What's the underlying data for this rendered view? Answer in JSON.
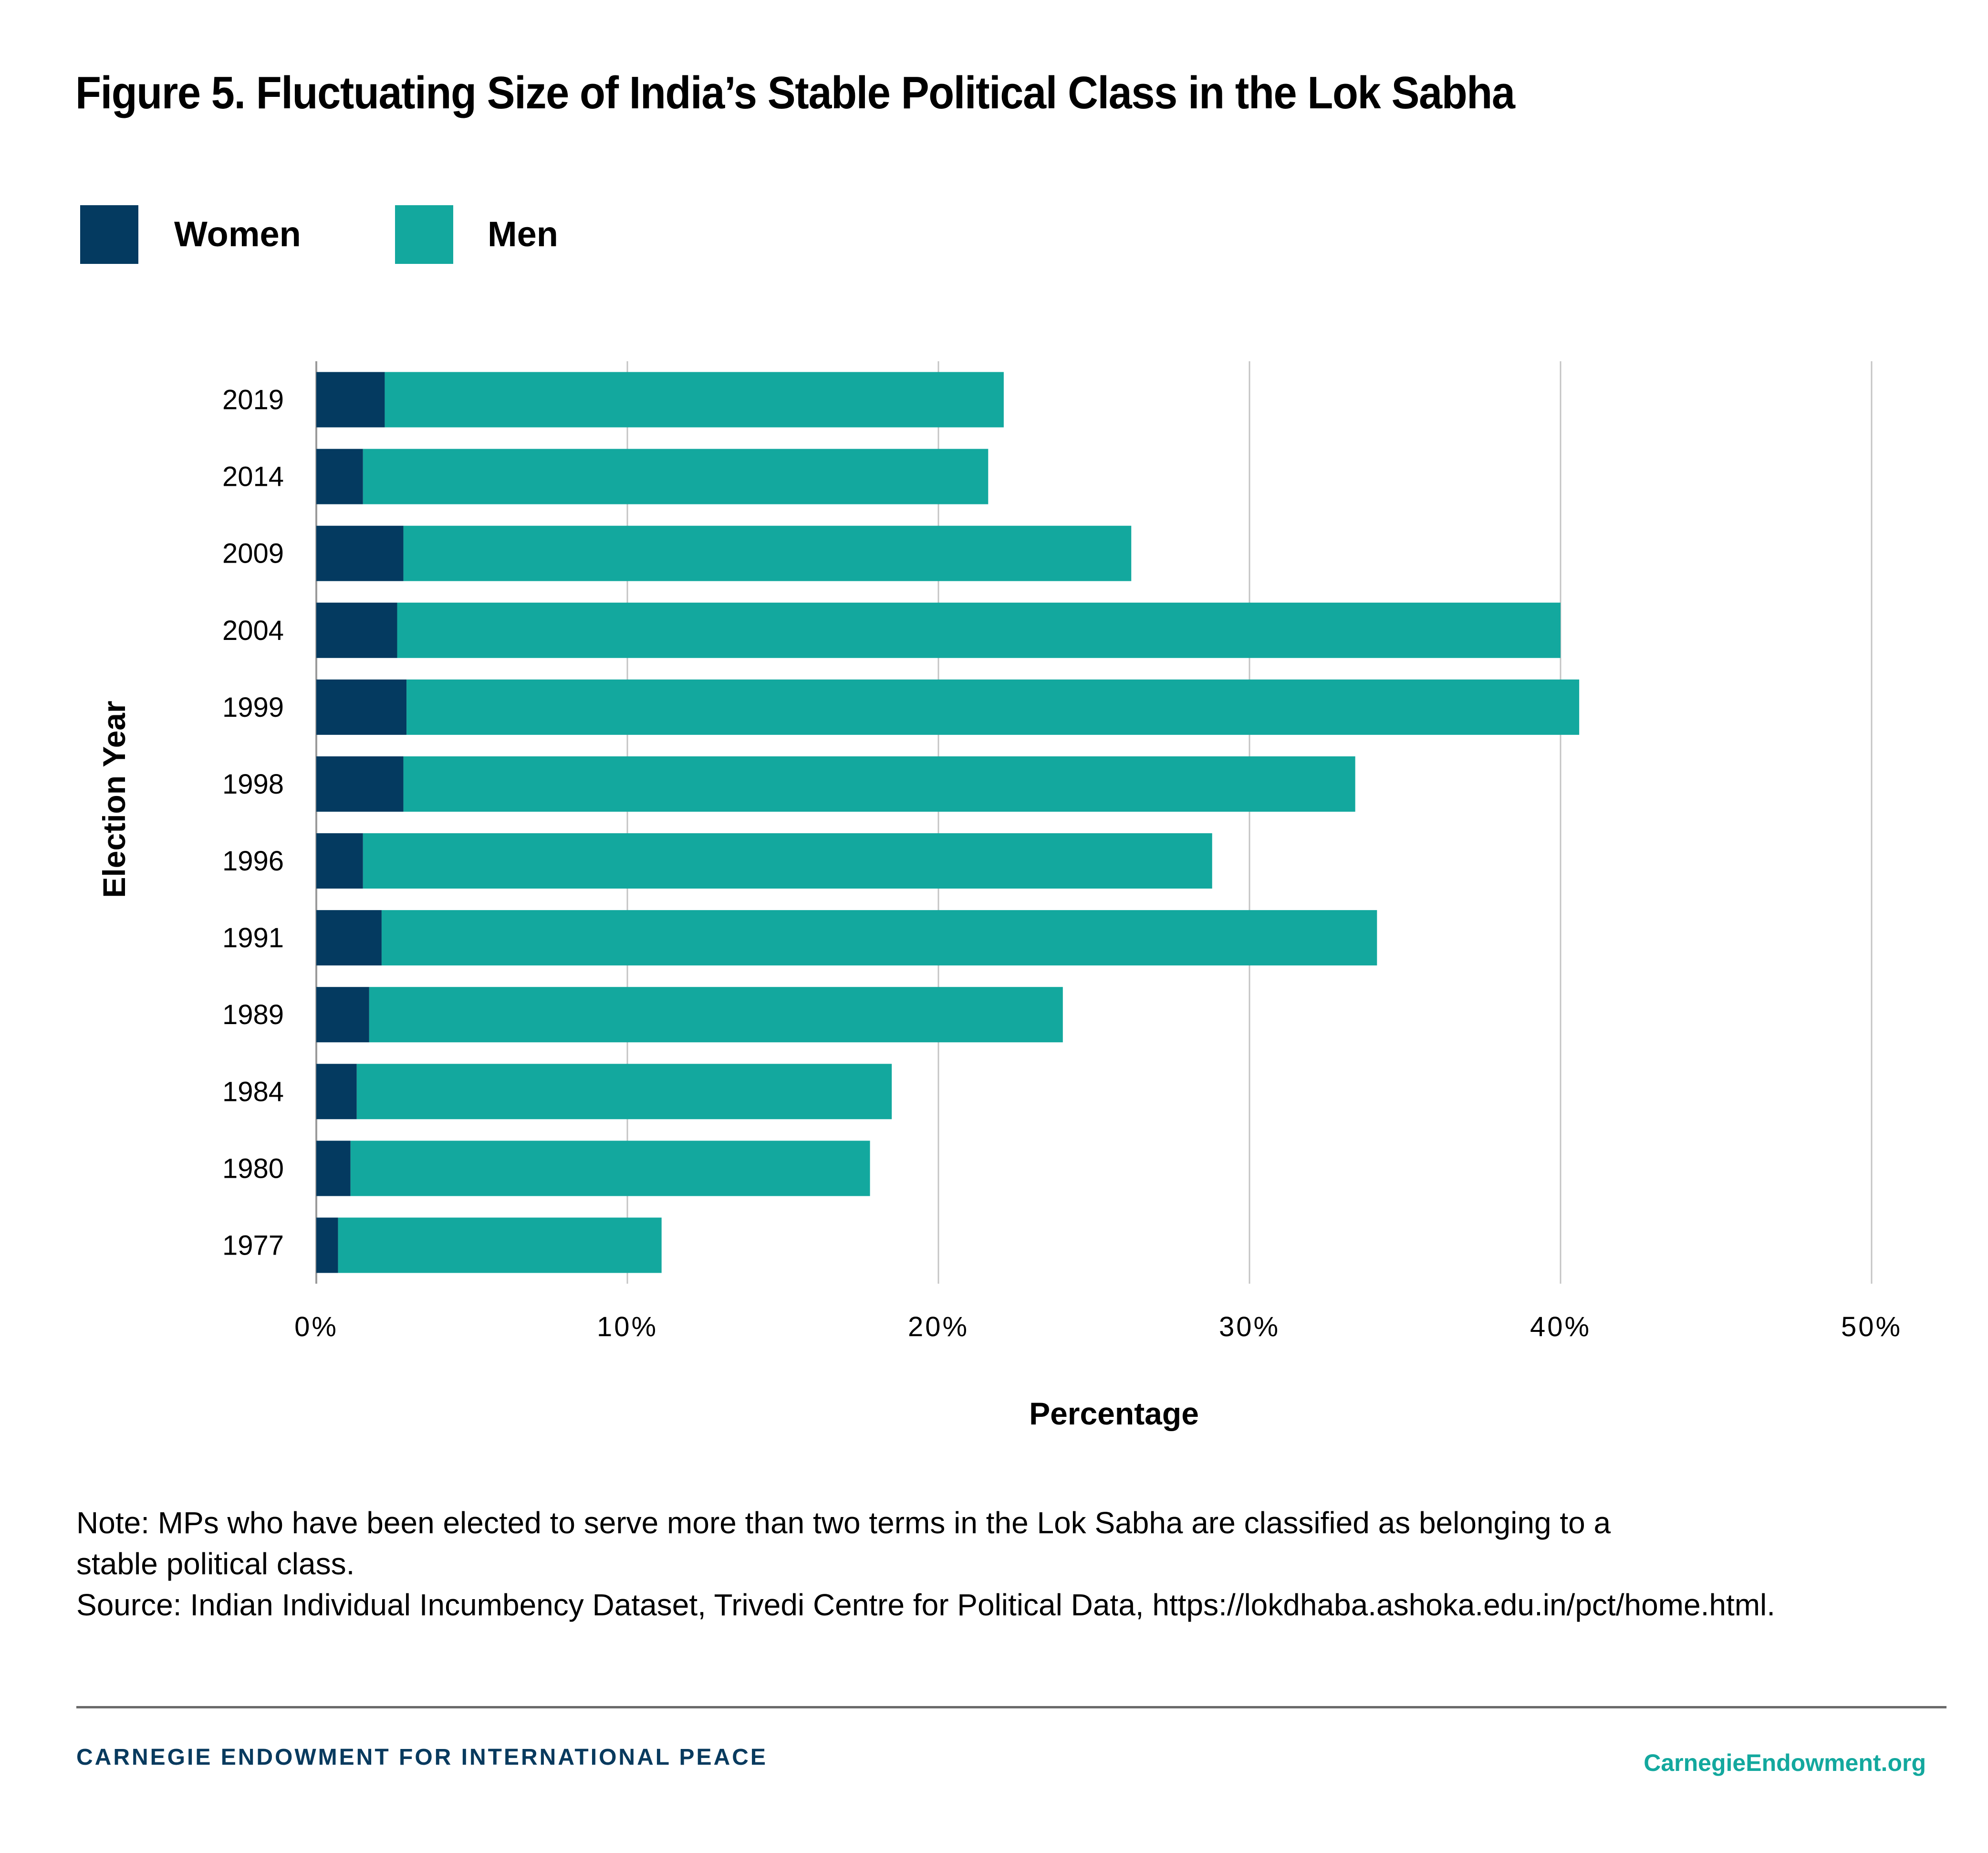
{
  "title": "Figure 5. Fluctuating Size of India’s Stable Political Class in the Lok Sabha",
  "legend": [
    {
      "label": "Women",
      "color": "#043a60"
    },
    {
      "label": "Men",
      "color": "#13a89e"
    }
  ],
  "chart_data": {
    "type": "bar",
    "orientation": "horizontal",
    "stacked": true,
    "title": "Figure 5. Fluctuating Size of India’s Stable Political Class in the Lok Sabha",
    "xlabel": "Percentage",
    "ylabel": "Election Year",
    "xlim": [
      0,
      50
    ],
    "x_ticks": [
      "0%",
      "10%",
      "20%",
      "30%",
      "40%",
      "50%"
    ],
    "x_tick_values": [
      0,
      10,
      20,
      30,
      40,
      50
    ],
    "grid": "vertical",
    "legend_position": "top-left",
    "categories": [
      "2019",
      "2014",
      "2009",
      "2004",
      "1999",
      "1998",
      "1996",
      "1991",
      "1989",
      "1984",
      "1980",
      "1977"
    ],
    "series": [
      {
        "name": "Women",
        "color": "#043a60",
        "values": [
          2.2,
          1.5,
          2.8,
          2.6,
          2.9,
          2.8,
          1.5,
          2.1,
          1.7,
          1.3,
          1.1,
          0.7
        ]
      },
      {
        "name": "Men",
        "color": "#13a89e",
        "values": [
          19.9,
          20.1,
          23.4,
          37.4,
          37.7,
          30.6,
          27.3,
          32.0,
          22.3,
          17.2,
          16.7,
          10.4
        ]
      }
    ],
    "totals": [
      22.1,
      21.6,
      26.2,
      40.0,
      40.6,
      33.4,
      28.8,
      34.1,
      24.0,
      18.5,
      17.8,
      11.1
    ]
  },
  "note": {
    "line1": "Note: MPs who have been elected to serve more than two terms in the Lok Sabha are classified as belonging to a",
    "line2": "stable political class.",
    "source": "Source: Indian Individual Incumbency Dataset, Trivedi Centre for Political Data, https://lokdhaba.ashoka.edu.in/pct/home.html."
  },
  "footer": {
    "org": "CARNEGIE ENDOWMENT FOR INTERNATIONAL PEACE",
    "site": "CarnegieEndowment.org"
  }
}
